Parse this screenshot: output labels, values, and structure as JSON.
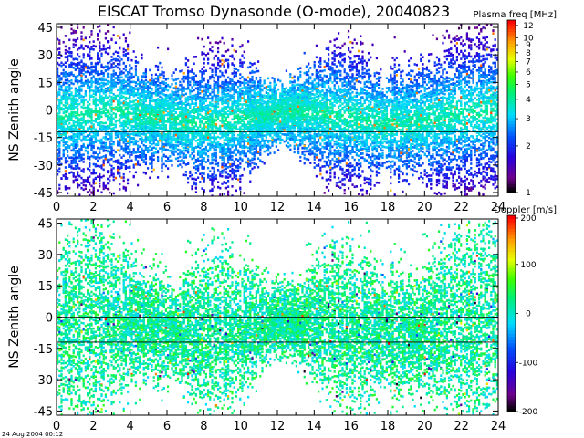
{
  "title": "EISCAT Tromso Dynasonde (O-mode),  20040823",
  "timestamp": "24 Aug 2004 00:12",
  "chart_data": [
    {
      "type": "heatmap",
      "title": "",
      "ylabel": "NS Zenith angle",
      "xlabel": "",
      "xlim": [
        0,
        24
      ],
      "ylim": [
        -47,
        47
      ],
      "xticks": [
        0,
        2,
        4,
        6,
        8,
        10,
        12,
        14,
        16,
        18,
        20,
        22,
        24
      ],
      "yticks": [
        -45,
        -30,
        -15,
        0,
        15,
        30,
        45
      ],
      "tick_labels_x": [
        "0",
        "2",
        "4",
        "6",
        "8",
        "10",
        "12",
        "14",
        "16",
        "18",
        "20",
        "22",
        "24"
      ],
      "tick_labels_y": [
        "-45",
        "-30",
        "-15",
        "0",
        "15",
        "30",
        "45"
      ],
      "reference_lines_y": [
        0,
        -12
      ],
      "colorbar": {
        "title": "Plasma freq [MHz]",
        "scale": "log",
        "range": [
          1,
          13
        ],
        "tick_values": [
          12,
          10,
          9,
          8,
          7,
          6,
          5,
          4,
          3,
          2,
          1
        ],
        "tick_labels": [
          "12",
          "10",
          "9",
          "8",
          "7",
          "6",
          "5",
          "4",
          "3",
          "2",
          "1"
        ]
      },
      "dominant_value": 4,
      "grid": false
    },
    {
      "type": "heatmap",
      "title": "",
      "ylabel": "NS Zenith angle",
      "xlabel": "",
      "xlim": [
        0,
        24
      ],
      "ylim": [
        -47,
        47
      ],
      "xticks": [
        0,
        2,
        4,
        6,
        8,
        10,
        12,
        14,
        16,
        18,
        20,
        22,
        24
      ],
      "yticks": [
        -45,
        -30,
        -15,
        0,
        15,
        30,
        45
      ],
      "tick_labels_x": [
        "0",
        "2",
        "4",
        "6",
        "8",
        "10",
        "12",
        "14",
        "16",
        "18",
        "20",
        "22",
        "24"
      ],
      "tick_labels_y": [
        "-45",
        "-30",
        "-15",
        "0",
        "15",
        "30",
        "45"
      ],
      "reference_lines_y": [
        0,
        -12
      ],
      "colorbar": {
        "title": "Doppler [m/s]",
        "scale": "linear",
        "range": [
          -200,
          200
        ],
        "tick_values": [
          200,
          100,
          0,
          -100,
          -200
        ],
        "tick_labels": [
          "200",
          "100",
          "0",
          "-100",
          "-200"
        ]
      },
      "dominant_value": 20,
      "grid": false
    }
  ]
}
